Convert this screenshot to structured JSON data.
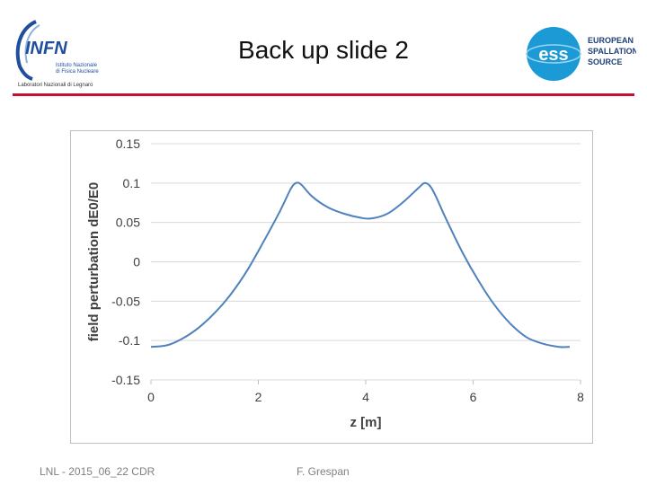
{
  "slide": {
    "title": "Back up slide 2",
    "footer_left": "LNL - 2015_06_22 CDR",
    "footer_center": "F. Grespan"
  },
  "logos": {
    "left": {
      "name": "INFN",
      "line1": "Istituto Nazionale",
      "line2": "di Fisica Nucleare",
      "line3": "Laboratori Nazionali di Legnaro"
    },
    "right": {
      "name": "ess",
      "line1": "EUROPEAN",
      "line2": "SPALLATION",
      "line3": "SOURCE"
    }
  },
  "colors": {
    "accent_rule": "#c8102e",
    "series": "#4f81bd",
    "infn_blue": "#1f4e9c",
    "ess_teal": "#1b9ad6"
  },
  "chart_data": {
    "type": "line",
    "title": "",
    "xlabel": "z [m]",
    "ylabel": "field perturbation dE0/E0",
    "xlim": [
      0,
      8
    ],
    "ylim": [
      -0.15,
      0.15
    ],
    "xticks": [
      "0",
      "2",
      "4",
      "6",
      "8"
    ],
    "yticks": [
      "0.15",
      "0.1",
      "0.05",
      "0",
      "-0.05",
      "-0.1",
      "-0.15"
    ],
    "grid": "horizontal",
    "legend": "none",
    "series": [
      {
        "x": [
          0,
          0.3,
          0.6,
          0.9,
          1.2,
          1.5,
          1.8,
          2.1,
          2.4,
          2.6,
          2.7,
          2.8,
          3.0,
          3.3,
          3.6,
          3.9,
          4.1,
          4.4,
          4.7,
          5.0,
          5.1,
          5.2,
          5.3,
          5.5,
          5.8,
          6.1,
          6.4,
          6.7,
          7.0,
          7.3,
          7.6,
          7.8
        ],
        "y": [
          -0.108,
          -0.106,
          -0.097,
          -0.083,
          -0.064,
          -0.04,
          -0.01,
          0.026,
          0.064,
          0.092,
          0.1,
          0.098,
          0.083,
          0.069,
          0.061,
          0.056,
          0.055,
          0.061,
          0.076,
          0.095,
          0.1,
          0.096,
          0.084,
          0.054,
          0.012,
          -0.024,
          -0.055,
          -0.079,
          -0.096,
          -0.104,
          -0.108,
          -0.108
        ]
      }
    ]
  }
}
